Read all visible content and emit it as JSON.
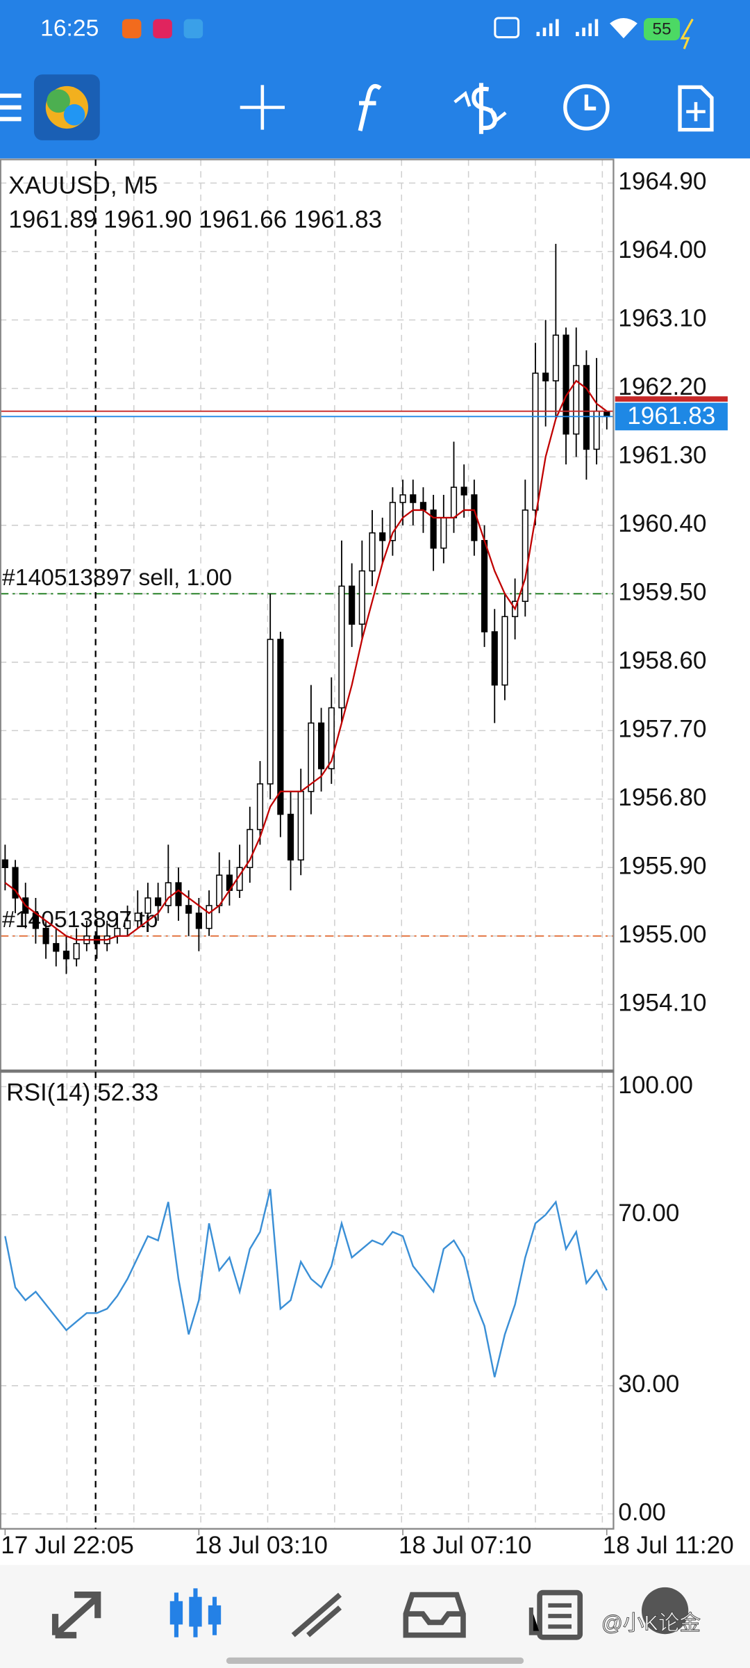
{
  "status_bar": {
    "time": "16:25",
    "battery": "55"
  },
  "chart_data": [
    {
      "type": "candlestick",
      "title": "XAUUSD, M5",
      "subtitle": "1961.89 1961.90 1961.66 1961.83",
      "color": "#000000",
      "open": [
        1956.0,
        1955.9,
        1955.5,
        1955.3,
        1955.1,
        1954.9,
        1954.8,
        1954.7,
        1954.9,
        1955.0,
        1954.9,
        1955.0,
        1955.1,
        1955.2,
        1955.3,
        1955.5,
        1955.4,
        1955.7,
        1955.4,
        1955.3,
        1955.1,
        1955.4,
        1955.8,
        1955.6,
        1955.9,
        1956.4,
        1957.0,
        1958.9,
        1956.6,
        1956.0,
        1956.9,
        1957.8,
        1957.2,
        1958.0,
        1959.6,
        1959.1,
        1959.8,
        1960.3,
        1960.2,
        1960.7,
        1960.8,
        1960.7,
        1960.6,
        1960.1,
        1960.5,
        1960.9,
        1960.8,
        1960.2,
        1959.0,
        1958.3,
        1959.2,
        1959.4,
        1960.6,
        1962.4,
        1962.3,
        1962.9,
        1961.6,
        1962.5,
        1961.4,
        1961.89
      ],
      "high": [
        1956.2,
        1956.0,
        1955.7,
        1955.5,
        1955.2,
        1955.1,
        1955.0,
        1955.1,
        1955.2,
        1955.2,
        1955.2,
        1955.3,
        1955.4,
        1955.6,
        1955.7,
        1955.7,
        1956.2,
        1955.9,
        1955.6,
        1955.5,
        1955.6,
        1956.1,
        1956.0,
        1956.2,
        1956.7,
        1957.3,
        1959.5,
        1959.0,
        1956.9,
        1957.2,
        1958.3,
        1958.0,
        1958.4,
        1960.2,
        1959.9,
        1960.2,
        1960.6,
        1960.5,
        1960.9,
        1961.0,
        1961.0,
        1960.9,
        1960.8,
        1960.8,
        1961.5,
        1961.2,
        1961.0,
        1960.4,
        1959.3,
        1959.5,
        1959.7,
        1961.0,
        1962.8,
        1963.1,
        1964.1,
        1963.0,
        1963.0,
        1962.7,
        1962.6,
        1961.9
      ],
      "low": [
        1955.6,
        1955.3,
        1955.1,
        1954.9,
        1954.7,
        1954.6,
        1954.5,
        1954.6,
        1954.8,
        1954.7,
        1954.8,
        1954.9,
        1955.0,
        1955.1,
        1955.2,
        1955.2,
        1955.3,
        1955.2,
        1955.0,
        1954.8,
        1955.0,
        1955.3,
        1955.4,
        1955.5,
        1955.7,
        1956.2,
        1956.8,
        1956.3,
        1955.6,
        1955.8,
        1956.6,
        1956.9,
        1957.0,
        1957.8,
        1958.8,
        1958.9,
        1959.6,
        1959.9,
        1960.0,
        1960.4,
        1960.4,
        1960.3,
        1959.8,
        1959.9,
        1960.3,
        1960.5,
        1960.0,
        1958.8,
        1957.8,
        1958.1,
        1958.9,
        1959.2,
        1960.4,
        1961.7,
        1961.8,
        1961.2,
        1961.3,
        1961.0,
        1961.2,
        1961.66
      ],
      "close": [
        1955.9,
        1955.5,
        1955.3,
        1955.1,
        1954.9,
        1954.8,
        1954.7,
        1954.9,
        1955.0,
        1954.9,
        1955.0,
        1955.1,
        1955.2,
        1955.3,
        1955.5,
        1955.4,
        1955.7,
        1955.4,
        1955.3,
        1955.1,
        1955.4,
        1955.8,
        1955.6,
        1955.9,
        1956.4,
        1957.0,
        1958.9,
        1956.6,
        1956.0,
        1956.9,
        1957.8,
        1957.2,
        1958.0,
        1959.6,
        1959.1,
        1959.8,
        1960.3,
        1960.2,
        1960.7,
        1960.8,
        1960.7,
        1960.6,
        1960.1,
        1960.5,
        1960.9,
        1960.8,
        1960.2,
        1959.0,
        1958.3,
        1959.2,
        1959.4,
        1960.6,
        1962.4,
        1962.3,
        1962.9,
        1961.6,
        1962.5,
        1961.4,
        1961.9,
        1961.83
      ],
      "overlay": {
        "color": "#c00000",
        "values": [
          1955.7,
          1955.6,
          1955.4,
          1955.3,
          1955.2,
          1955.1,
          1955.0,
          1954.95,
          1954.95,
          1954.95,
          1954.95,
          1955.0,
          1955.0,
          1955.1,
          1955.2,
          1955.3,
          1955.5,
          1955.6,
          1955.5,
          1955.4,
          1955.3,
          1955.4,
          1955.6,
          1955.8,
          1956.0,
          1956.3,
          1956.7,
          1956.9,
          1956.9,
          1956.9,
          1957.0,
          1957.1,
          1957.3,
          1957.8,
          1958.3,
          1958.9,
          1959.4,
          1959.9,
          1960.3,
          1960.5,
          1960.6,
          1960.6,
          1960.5,
          1960.5,
          1960.5,
          1960.6,
          1960.6,
          1960.2,
          1959.8,
          1959.5,
          1959.3,
          1959.7,
          1960.5,
          1961.3,
          1961.8,
          1962.1,
          1962.3,
          1962.2,
          1962.0,
          1961.9
        ]
      },
      "ylim": [
        1953.23,
        1965.21
      ],
      "yticks": [
        {
          "value": 1964.9,
          "label": "1964.90"
        },
        {
          "value": 1964.0,
          "label": "1964.00"
        },
        {
          "value": 1963.1,
          "label": "1963.10"
        },
        {
          "value": 1962.2,
          "label": "1962.20"
        },
        {
          "value": 1961.3,
          "label": "1961.30"
        },
        {
          "value": 1960.4,
          "label": "1960.40"
        },
        {
          "value": 1959.5,
          "label": "1959.50"
        },
        {
          "value": 1958.6,
          "label": "1958.60"
        },
        {
          "value": 1957.7,
          "label": "1957.70"
        },
        {
          "value": 1956.8,
          "label": "1956.80"
        },
        {
          "value": 1955.9,
          "label": "1955.90"
        },
        {
          "value": 1955.0,
          "label": "1955.00"
        },
        {
          "value": 1954.1,
          "label": "1954.10"
        }
      ],
      "xticks": [
        {
          "value": 0,
          "label": "17 Jul 22:05"
        },
        {
          "value": 19,
          "label": "18 Jul 03:10"
        },
        {
          "value": 39,
          "label": "18 Jul 07:10"
        },
        {
          "value": 59,
          "label": "18 Jul 11:20"
        }
      ],
      "grid": true,
      "price_lines": [
        {
          "value": 1961.83,
          "color": "#1e88e5"
        },
        {
          "value": 1961.9,
          "color": "#c62828"
        }
      ],
      "current_price": 1961.83,
      "orders": [
        {
          "label": "#140513897 sell, 1.00",
          "value": 1959.5,
          "color": "#1a7a1a"
        },
        {
          "label": "#140513897 tp",
          "value": 1955.0,
          "color": "#e0642a"
        }
      ]
    },
    {
      "type": "line",
      "title": "RSI(14) 52.33",
      "color": "#3a8fd6",
      "values": [
        65,
        53,
        50,
        52,
        49,
        46,
        43,
        45,
        47,
        47,
        48,
        51,
        55,
        60,
        65,
        64,
        73,
        55,
        42,
        50,
        68,
        57,
        60,
        52,
        62,
        66,
        76,
        48,
        50,
        59,
        55,
        53,
        58,
        68,
        60,
        62,
        64,
        63,
        66,
        65,
        58,
        55,
        52,
        62,
        64,
        60,
        50,
        44,
        32,
        42,
        49,
        60,
        68,
        70,
        73,
        62,
        66,
        54,
        57,
        52.33
      ],
      "ylim": [
        -3.5,
        103.5
      ],
      "yticks": [
        {
          "value": 0,
          "label": "0.00"
        },
        {
          "value": 30,
          "label": "30.00"
        },
        {
          "value": 70,
          "label": "70.00"
        },
        {
          "value": 100,
          "label": "100.00"
        }
      ],
      "grid": true
    }
  ],
  "watermark": "@小K论金"
}
